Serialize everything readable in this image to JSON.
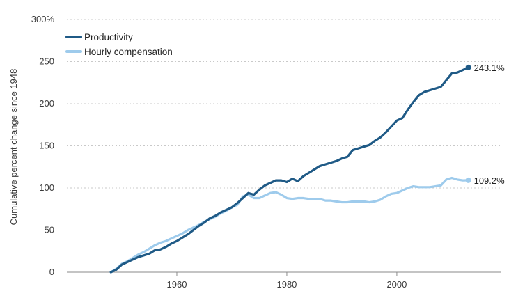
{
  "chart_data": {
    "type": "line",
    "title": "",
    "xlabel": "",
    "ylabel": "Cumulative percent change since 1948",
    "xlim": [
      1940,
      2019
    ],
    "ylim": [
      0,
      300
    ],
    "y_ticks": [
      {
        "value": 0,
        "label": "0"
      },
      {
        "value": 50,
        "label": "50"
      },
      {
        "value": 100,
        "label": "100"
      },
      {
        "value": 150,
        "label": "150"
      },
      {
        "value": 200,
        "label": "200"
      },
      {
        "value": 250,
        "label": "250"
      },
      {
        "value": 300,
        "label": "300%"
      }
    ],
    "x_ticks": [
      {
        "value": 1960,
        "label": "1960"
      },
      {
        "value": 1980,
        "label": "1980"
      },
      {
        "value": 2000,
        "label": "2000"
      }
    ],
    "grid": "horizontal dotted",
    "legend_position": "top-left",
    "series": [
      {
        "name": "Productivity",
        "color": "#1f5a86",
        "end_label": "243.1%",
        "points": [
          [
            1948,
            0
          ],
          [
            1949,
            3
          ],
          [
            1950,
            9
          ],
          [
            1951,
            12
          ],
          [
            1952,
            15
          ],
          [
            1953,
            18
          ],
          [
            1954,
            20
          ],
          [
            1955,
            22
          ],
          [
            1956,
            26
          ],
          [
            1957,
            27
          ],
          [
            1958,
            30
          ],
          [
            1959,
            34
          ],
          [
            1960,
            37
          ],
          [
            1961,
            41
          ],
          [
            1962,
            45
          ],
          [
            1963,
            50
          ],
          [
            1964,
            55
          ],
          [
            1965,
            59
          ],
          [
            1966,
            64
          ],
          [
            1967,
            67
          ],
          [
            1968,
            71
          ],
          [
            1969,
            74
          ],
          [
            1970,
            77
          ],
          [
            1971,
            82
          ],
          [
            1972,
            88
          ],
          [
            1973,
            94
          ],
          [
            1974,
            92
          ],
          [
            1975,
            98
          ],
          [
            1976,
            103
          ],
          [
            1977,
            106
          ],
          [
            1978,
            109
          ],
          [
            1979,
            109
          ],
          [
            1980,
            107
          ],
          [
            1981,
            111
          ],
          [
            1982,
            108
          ],
          [
            1983,
            114
          ],
          [
            1984,
            118
          ],
          [
            1985,
            122
          ],
          [
            1986,
            126
          ],
          [
            1987,
            128
          ],
          [
            1988,
            130
          ],
          [
            1989,
            132
          ],
          [
            1990,
            135
          ],
          [
            1991,
            137
          ],
          [
            1992,
            145
          ],
          [
            1993,
            147
          ],
          [
            1994,
            149
          ],
          [
            1995,
            151
          ],
          [
            1996,
            156
          ],
          [
            1997,
            160
          ],
          [
            1998,
            166
          ],
          [
            1999,
            173
          ],
          [
            2000,
            180
          ],
          [
            2001,
            183
          ],
          [
            2002,
            193
          ],
          [
            2003,
            202
          ],
          [
            2004,
            210
          ],
          [
            2005,
            214
          ],
          [
            2006,
            216
          ],
          [
            2007,
            218
          ],
          [
            2008,
            220
          ],
          [
            2009,
            228
          ],
          [
            2010,
            236
          ],
          [
            2011,
            237
          ],
          [
            2012,
            240
          ],
          [
            2013,
            243.1
          ]
        ]
      },
      {
        "name": "Hourly compensation",
        "color": "#9ecbec",
        "end_label": "109.2%",
        "points": [
          [
            1948,
            0
          ],
          [
            1949,
            4
          ],
          [
            1950,
            10
          ],
          [
            1951,
            13
          ],
          [
            1952,
            17
          ],
          [
            1953,
            21
          ],
          [
            1954,
            24
          ],
          [
            1955,
            28
          ],
          [
            1956,
            32
          ],
          [
            1957,
            35
          ],
          [
            1958,
            37
          ],
          [
            1959,
            40
          ],
          [
            1960,
            43
          ],
          [
            1961,
            46
          ],
          [
            1962,
            50
          ],
          [
            1963,
            53
          ],
          [
            1964,
            56
          ],
          [
            1965,
            60
          ],
          [
            1966,
            63
          ],
          [
            1967,
            66
          ],
          [
            1968,
            70
          ],
          [
            1969,
            73
          ],
          [
            1970,
            77
          ],
          [
            1971,
            80
          ],
          [
            1972,
            90
          ],
          [
            1973,
            92
          ],
          [
            1974,
            88
          ],
          [
            1975,
            88
          ],
          [
            1976,
            91
          ],
          [
            1977,
            94
          ],
          [
            1978,
            95
          ],
          [
            1979,
            92
          ],
          [
            1980,
            88
          ],
          [
            1981,
            87
          ],
          [
            1982,
            88
          ],
          [
            1983,
            88
          ],
          [
            1984,
            87
          ],
          [
            1985,
            87
          ],
          [
            1986,
            87
          ],
          [
            1987,
            85
          ],
          [
            1988,
            85
          ],
          [
            1989,
            84
          ],
          [
            1990,
            83
          ],
          [
            1991,
            83
          ],
          [
            1992,
            84
          ],
          [
            1993,
            84
          ],
          [
            1994,
            84
          ],
          [
            1995,
            83
          ],
          [
            1996,
            84
          ],
          [
            1997,
            86
          ],
          [
            1998,
            90
          ],
          [
            1999,
            93
          ],
          [
            2000,
            94
          ],
          [
            2001,
            97
          ],
          [
            2002,
            100
          ],
          [
            2003,
            102
          ],
          [
            2004,
            101
          ],
          [
            2005,
            101
          ],
          [
            2006,
            101
          ],
          [
            2007,
            102
          ],
          [
            2008,
            103
          ],
          [
            2009,
            110
          ],
          [
            2010,
            112
          ],
          [
            2011,
            110
          ],
          [
            2012,
            109
          ],
          [
            2013,
            109.2
          ]
        ]
      }
    ]
  }
}
